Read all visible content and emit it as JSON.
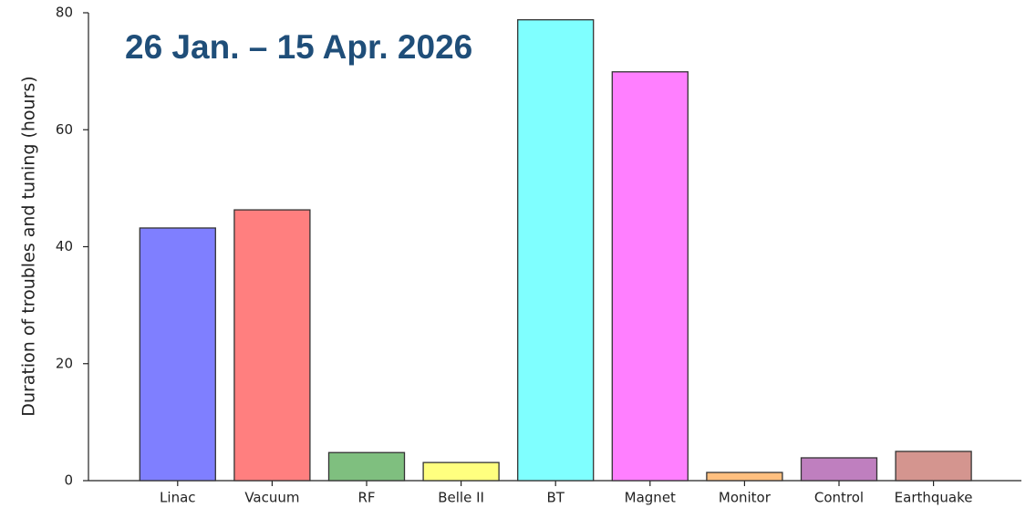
{
  "chart_data": {
    "type": "bar",
    "title": "26 Jan. – 15 Apr. 2026",
    "y_label": "Duration of troubles and tuning (hours)",
    "categories": [
      "Linac",
      "Vacuum",
      "RF",
      "Belle II",
      "BT",
      "Magnet",
      "Monitor",
      "Control",
      "Earthquake"
    ],
    "values": [
      43.2,
      46.3,
      4.8,
      3.1,
      78.8,
      69.9,
      1.4,
      3.9,
      5.0
    ],
    "colors": [
      "#7f7fff",
      "#ff7f7f",
      "#7fbf7f",
      "#ffff7f",
      "#7fffff",
      "#ff7fff",
      "#ffbf7f",
      "#bf7fbf",
      "#d4958f"
    ],
    "ylim": [
      0,
      80
    ],
    "yticks": [
      0,
      20,
      40,
      60,
      80
    ],
    "grid": false
  }
}
